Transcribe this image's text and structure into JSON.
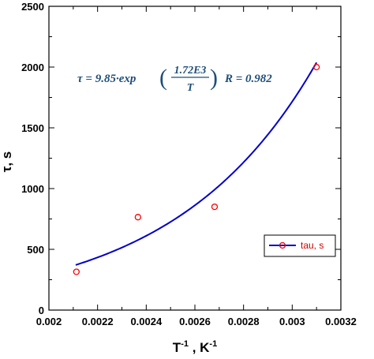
{
  "chart_data": {
    "type": "scatter",
    "xlabel": "T",
    "xlabel_exp1": "-1",
    "xlabel_sep": " , K",
    "xlabel_exp2": "-1",
    "ylabel": "τ, s",
    "xlim": [
      0.002,
      0.0032
    ],
    "ylim": [
      0,
      2500
    ],
    "xticks": [
      "0.002",
      "0.0022",
      "0.0024",
      "0.0026",
      "0.0028",
      "0.003",
      "0.0032"
    ],
    "yticks": [
      "0",
      "500",
      "1000",
      "1500",
      "2000",
      "2500"
    ],
    "grid": false,
    "legend_position": "bottom-right",
    "annotation": {
      "prefix": "τ = 9.85·exp",
      "numerator": "1.72E3",
      "denominator": "T",
      "r_text": "R = 0.982"
    },
    "series": [
      {
        "name": "tau, s",
        "kind": "points",
        "color": "#ff0000",
        "x": [
          0.002113,
          0.002366,
          0.002681,
          0.0031
        ],
        "y": [
          315,
          765,
          850,
          2000
        ]
      },
      {
        "kind": "fit",
        "color": "#0000cc",
        "coef": 9.85,
        "exponent": 1720,
        "x_range": [
          0.00211,
          0.0031
        ]
      }
    ]
  }
}
